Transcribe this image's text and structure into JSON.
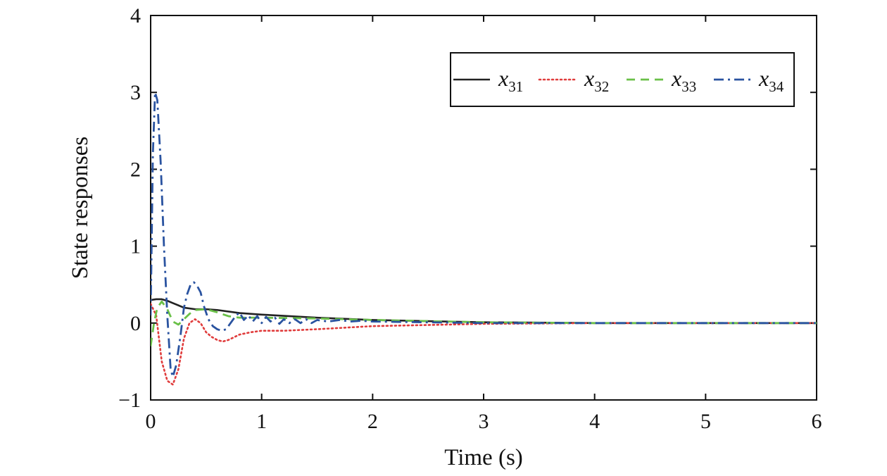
{
  "chart_data": {
    "type": "line",
    "xlabel": "Time (s)",
    "ylabel": "State responses",
    "xlim": [
      0,
      6
    ],
    "ylim": [
      -1,
      4
    ],
    "xticks": [
      0,
      1,
      2,
      3,
      4,
      5,
      6
    ],
    "yticks": [
      -1,
      0,
      1,
      2,
      3,
      4
    ],
    "xtick_labels": [
      "0",
      "1",
      "2",
      "3",
      "4",
      "5",
      "6"
    ],
    "ytick_labels": [
      "−1",
      "0",
      "1",
      "2",
      "3",
      "4"
    ],
    "grid": false,
    "legend_position": "top-right",
    "series": [
      {
        "name": "x31",
        "label_main": "x",
        "label_sub": "31",
        "color": "#222222",
        "style": "solid",
        "x": [
          0,
          0.05,
          0.1,
          0.15,
          0.2,
          0.3,
          0.4,
          0.5,
          0.6,
          0.8,
          1.0,
          1.5,
          2.0,
          3.0,
          4.0,
          5.0,
          6.0
        ],
        "y": [
          0.3,
          0.31,
          0.31,
          0.29,
          0.26,
          0.2,
          0.18,
          0.18,
          0.17,
          0.13,
          0.11,
          0.07,
          0.04,
          0.01,
          0.0,
          0.0,
          0.0
        ]
      },
      {
        "name": "x32",
        "label_main": "x",
        "label_sub": "32",
        "color": "#e03c3c",
        "style": "dotted",
        "x": [
          0,
          0.05,
          0.1,
          0.15,
          0.2,
          0.25,
          0.3,
          0.35,
          0.4,
          0.45,
          0.5,
          0.55,
          0.6,
          0.65,
          0.7,
          0.8,
          0.9,
          1.0,
          1.2,
          1.5,
          2.0,
          3.0,
          4.0,
          6.0
        ],
        "y": [
          0.25,
          0.1,
          -0.5,
          -0.75,
          -0.8,
          -0.6,
          -0.2,
          0.0,
          0.05,
          0.0,
          -0.12,
          -0.18,
          -0.22,
          -0.24,
          -0.22,
          -0.15,
          -0.12,
          -0.1,
          -0.1,
          -0.08,
          -0.04,
          -0.01,
          0.0,
          0.0
        ]
      },
      {
        "name": "x33",
        "label_main": "x",
        "label_sub": "33",
        "color": "#6ac048",
        "style": "dashed",
        "x": [
          0,
          0.03,
          0.06,
          0.1,
          0.15,
          0.2,
          0.25,
          0.3,
          0.35,
          0.4,
          0.5,
          0.6,
          0.7,
          0.8,
          1.0,
          1.5,
          2.0,
          3.0,
          4.0,
          6.0
        ],
        "y": [
          -0.3,
          0.0,
          0.2,
          0.28,
          0.18,
          0.02,
          -0.02,
          0.05,
          0.12,
          0.17,
          0.18,
          0.14,
          0.09,
          0.07,
          0.07,
          0.06,
          0.04,
          0.01,
          0.0,
          0.0
        ]
      },
      {
        "name": "x34",
        "label_main": "x",
        "label_sub": "34",
        "color": "#2a53a0",
        "style": "dashdot",
        "x": [
          0,
          0.02,
          0.04,
          0.06,
          0.09,
          0.12,
          0.15,
          0.18,
          0.2,
          0.23,
          0.27,
          0.3,
          0.33,
          0.36,
          0.39,
          0.42,
          0.45,
          0.48,
          0.52,
          0.56,
          0.6,
          0.64,
          0.68,
          0.72,
          0.76,
          0.8,
          0.84,
          0.88,
          0.92,
          0.96,
          1.0,
          1.04,
          1.08,
          1.12,
          1.16,
          1.2,
          1.25,
          1.3,
          1.35,
          1.4,
          1.45,
          1.5,
          1.6,
          1.7,
          1.8,
          1.9,
          2.0,
          2.5,
          3.0,
          4.0,
          5.0,
          6.0
        ],
        "y": [
          0.1,
          2.2,
          3.0,
          2.9,
          2.1,
          1.0,
          0.1,
          -0.6,
          -0.7,
          -0.55,
          -0.15,
          0.2,
          0.38,
          0.5,
          0.53,
          0.48,
          0.4,
          0.22,
          0.05,
          -0.04,
          -0.08,
          -0.1,
          -0.08,
          0.0,
          0.08,
          0.14,
          0.04,
          0.1,
          0.02,
          0.09,
          0.0,
          0.08,
          0.02,
          0.07,
          -0.01,
          0.05,
          0.0,
          0.05,
          0.0,
          0.05,
          0.0,
          0.04,
          0.02,
          0.04,
          0.02,
          0.03,
          0.02,
          0.01,
          0.0,
          0.0,
          0.0,
          0.0
        ]
      }
    ]
  }
}
